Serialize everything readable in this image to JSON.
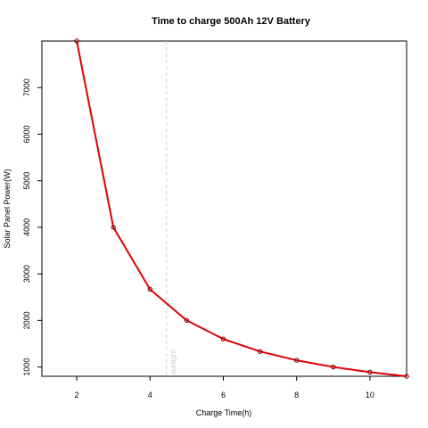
{
  "chart_data": {
    "type": "line",
    "title": "Time to charge 500Ah 12V Battery",
    "xlabel": "Charge Time(h)",
    "ylabel": "Solar Panel Power(W)",
    "x": [
      2,
      3,
      4,
      5,
      6,
      7,
      8,
      9,
      10,
      11
    ],
    "series": [
      {
        "values": [
          8000,
          4000,
          2667,
          2000,
          1600,
          1333,
          1143,
          1000,
          889,
          800
        ],
        "color": "#e00000"
      }
    ],
    "xlim": [
      1.05,
      11
    ],
    "ylim": [
      800,
      8000
    ],
    "xticks": [
      2,
      4,
      6,
      8,
      10
    ],
    "yticks": [
      1000,
      2000,
      3000,
      4000,
      5000,
      6000,
      7000
    ],
    "grid": false,
    "reference_line": {
      "x": 4.45,
      "label": "sunlight",
      "color": "#d0d0d0"
    }
  }
}
